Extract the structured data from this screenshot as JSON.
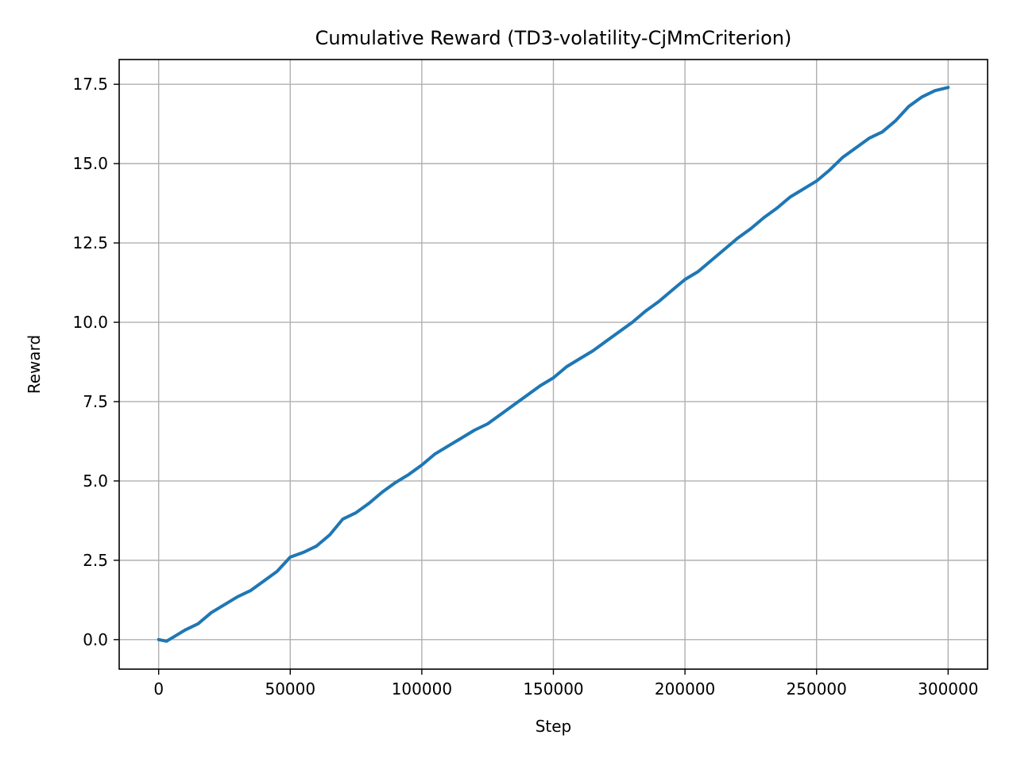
{
  "chart_data": {
    "type": "line",
    "title": "Cumulative Reward (TD3-volatility-CjMmCriterion)",
    "xlabel": "Step",
    "ylabel": "Reward",
    "xlim": [
      -15000,
      315000
    ],
    "ylim": [
      -0.93,
      18.28
    ],
    "xticks": [
      0,
      50000,
      100000,
      150000,
      200000,
      250000,
      300000
    ],
    "xtick_labels": [
      "0",
      "50000",
      "100000",
      "150000",
      "200000",
      "250000",
      "300000"
    ],
    "yticks": [
      0.0,
      2.5,
      5.0,
      7.5,
      10.0,
      12.5,
      15.0,
      17.5
    ],
    "ytick_labels": [
      "0.0",
      "2.5",
      "5.0",
      "7.5",
      "10.0",
      "12.5",
      "15.0",
      "17.5"
    ],
    "grid": true,
    "series": [
      {
        "color": "#1f77b4",
        "x": [
          0,
          3000,
          6000,
          10000,
          15000,
          20000,
          25000,
          30000,
          35000,
          40000,
          45000,
          50000,
          55000,
          60000,
          65000,
          70000,
          75000,
          80000,
          85000,
          90000,
          95000,
          100000,
          105000,
          110000,
          115000,
          120000,
          125000,
          130000,
          135000,
          140000,
          145000,
          150000,
          155000,
          160000,
          165000,
          170000,
          175000,
          180000,
          185000,
          190000,
          195000,
          200000,
          205000,
          210000,
          215000,
          220000,
          225000,
          230000,
          235000,
          240000,
          245000,
          250000,
          255000,
          260000,
          265000,
          270000,
          275000,
          280000,
          285000,
          290000,
          295000,
          300000
        ],
        "y": [
          0.0,
          -0.05,
          0.1,
          0.3,
          0.5,
          0.85,
          1.1,
          1.35,
          1.55,
          1.85,
          2.15,
          2.6,
          2.75,
          2.95,
          3.3,
          3.8,
          4.0,
          4.3,
          4.65,
          4.95,
          5.2,
          5.5,
          5.85,
          6.1,
          6.35,
          6.6,
          6.8,
          7.1,
          7.4,
          7.7,
          8.0,
          8.25,
          8.6,
          8.85,
          9.1,
          9.4,
          9.7,
          10.0,
          10.35,
          10.65,
          11.0,
          11.35,
          11.6,
          11.95,
          12.3,
          12.65,
          12.95,
          13.3,
          13.6,
          13.95,
          14.2,
          14.45,
          14.8,
          15.2,
          15.5,
          15.8,
          16.0,
          16.35,
          16.8,
          17.1,
          17.3,
          17.4
        ]
      }
    ]
  }
}
